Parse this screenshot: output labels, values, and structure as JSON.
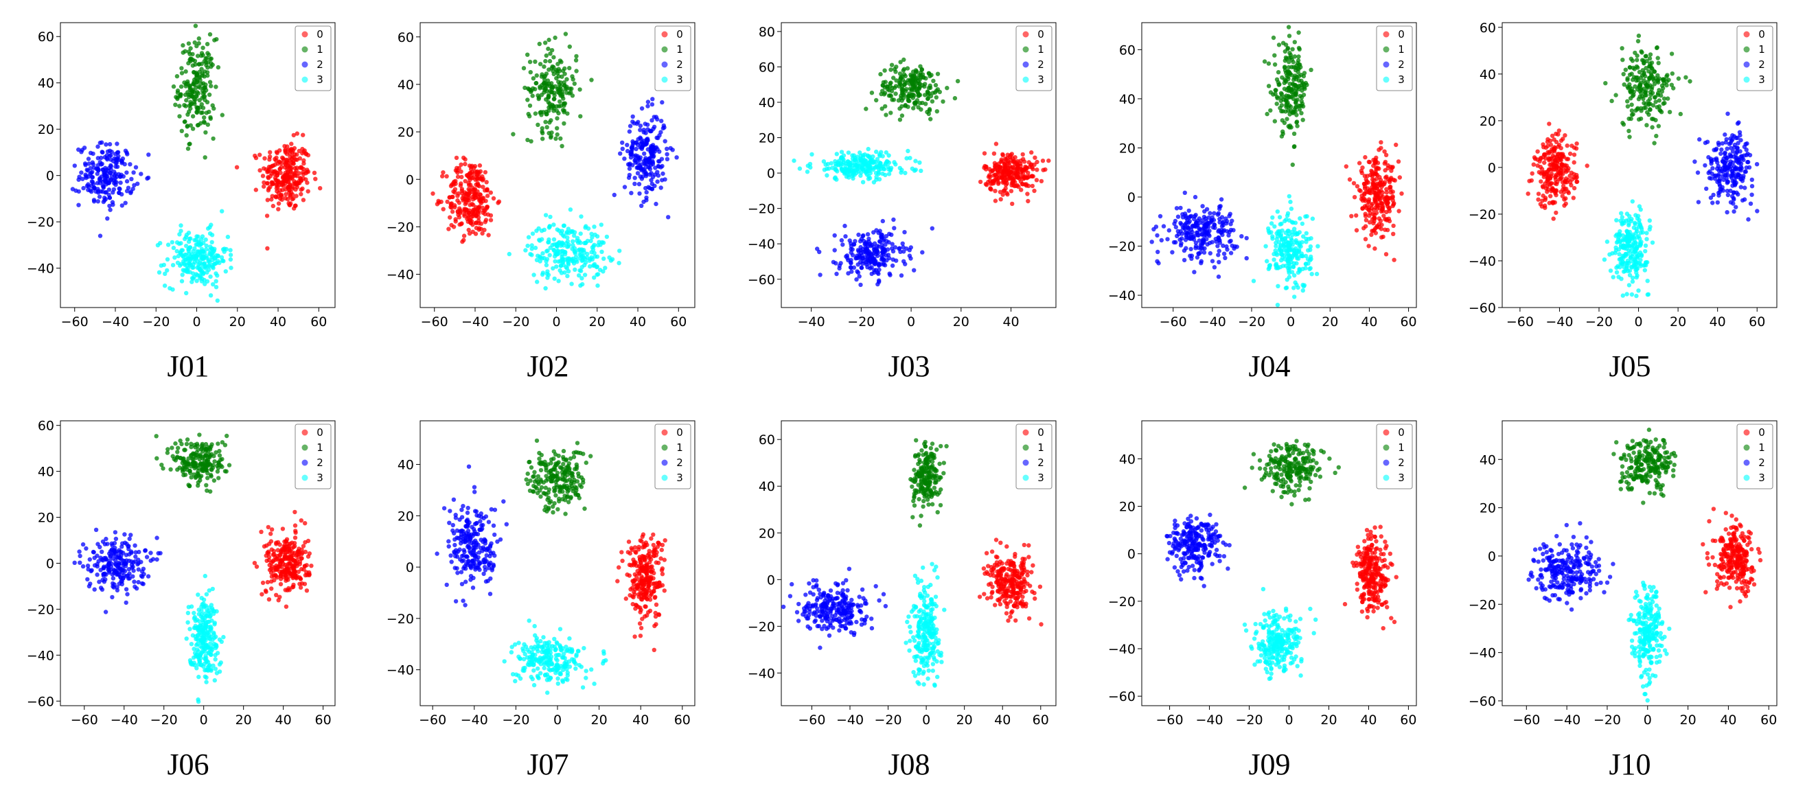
{
  "figure": {
    "legend_labels": [
      "0",
      "1",
      "2",
      "3"
    ],
    "class_colors": [
      "#ff0000",
      "#008000",
      "#0000ff",
      "#00ffff"
    ]
  },
  "chart_data": [
    {
      "type": "scatter",
      "title": "J01",
      "xticks": [
        -60,
        -40,
        -20,
        0,
        20,
        40,
        60
      ],
      "yticks": [
        -40,
        -20,
        0,
        20,
        40,
        60
      ],
      "xlim": [
        -67,
        68
      ],
      "ylim": [
        -57,
        66
      ],
      "clusters": [
        {
          "class": "0",
          "color": "#ff0000",
          "center": [
            44,
            0
          ],
          "spread": [
            8,
            10
          ],
          "n": 260
        },
        {
          "class": "1",
          "color": "#008000",
          "center": [
            0,
            38
          ],
          "spread": [
            6,
            14
          ],
          "n": 200
        },
        {
          "class": "2",
          "color": "#0000ff",
          "center": [
            -44,
            0
          ],
          "spread": [
            9,
            9
          ],
          "n": 210
        },
        {
          "class": "3",
          "color": "#00ffff",
          "center": [
            0,
            -36
          ],
          "spread": [
            10,
            8
          ],
          "n": 230
        }
      ]
    },
    {
      "type": "scatter",
      "title": "J02",
      "xticks": [
        -60,
        -40,
        -20,
        0,
        20,
        40,
        60
      ],
      "yticks": [
        -40,
        -20,
        0,
        20,
        40,
        60
      ],
      "xlim": [
        -67,
        68
      ],
      "ylim": [
        -54,
        66
      ],
      "clusters": [
        {
          "class": "0",
          "color": "#ff0000",
          "center": [
            -42,
            -8
          ],
          "spread": [
            8,
            11
          ],
          "n": 260
        },
        {
          "class": "1",
          "color": "#008000",
          "center": [
            -2,
            38
          ],
          "spread": [
            8,
            12
          ],
          "n": 200
        },
        {
          "class": "2",
          "color": "#0000ff",
          "center": [
            44,
            10
          ],
          "spread": [
            7,
            12
          ],
          "n": 220
        },
        {
          "class": "3",
          "color": "#00ffff",
          "center": [
            6,
            -30
          ],
          "spread": [
            13,
            8
          ],
          "n": 240
        }
      ]
    },
    {
      "type": "scatter",
      "title": "J03",
      "xticks": [
        -40,
        -20,
        0,
        20,
        40
      ],
      "yticks": [
        -60,
        -40,
        -20,
        0,
        20,
        40,
        60,
        80
      ],
      "xlim": [
        -52,
        58
      ],
      "ylim": [
        -76,
        85
      ],
      "clusters": [
        {
          "class": "0",
          "color": "#ff0000",
          "center": [
            40,
            0
          ],
          "spread": [
            7,
            8
          ],
          "n": 250
        },
        {
          "class": "1",
          "color": "#008000",
          "center": [
            0,
            48
          ],
          "spread": [
            9,
            9
          ],
          "n": 210
        },
        {
          "class": "2",
          "color": "#0000ff",
          "center": [
            -16,
            -46
          ],
          "spread": [
            9,
            9
          ],
          "n": 230
        },
        {
          "class": "3",
          "color": "#00ffff",
          "center": [
            -20,
            4
          ],
          "spread": [
            13,
            5
          ],
          "n": 240
        }
      ]
    },
    {
      "type": "scatter",
      "title": "J04",
      "xticks": [
        -60,
        -40,
        -20,
        0,
        20,
        40,
        60
      ],
      "yticks": [
        -40,
        -20,
        0,
        20,
        40,
        60
      ],
      "xlim": [
        -76,
        64
      ],
      "ylim": [
        -45,
        71
      ],
      "clusters": [
        {
          "class": "0",
          "color": "#ff0000",
          "center": [
            44,
            0
          ],
          "spread": [
            7,
            10
          ],
          "n": 260
        },
        {
          "class": "1",
          "color": "#008000",
          "center": [
            0,
            44
          ],
          "spread": [
            6,
            12
          ],
          "n": 200
        },
        {
          "class": "2",
          "color": "#0000ff",
          "center": [
            -46,
            -14
          ],
          "spread": [
            12,
            7
          ],
          "n": 240
        },
        {
          "class": "3",
          "color": "#00ffff",
          "center": [
            0,
            -22
          ],
          "spread": [
            7,
            11
          ],
          "n": 220
        }
      ]
    },
    {
      "type": "scatter",
      "title": "J05",
      "xticks": [
        -60,
        -40,
        -20,
        0,
        20,
        40,
        60
      ],
      "yticks": [
        -60,
        -40,
        -20,
        0,
        20,
        40,
        60
      ],
      "xlim": [
        -69,
        70
      ],
      "ylim": [
        -60,
        62
      ],
      "clusters": [
        {
          "class": "0",
          "color": "#ff0000",
          "center": [
            -42,
            -2
          ],
          "spread": [
            7,
            10
          ],
          "n": 240
        },
        {
          "class": "1",
          "color": "#008000",
          "center": [
            4,
            34
          ],
          "spread": [
            9,
            11
          ],
          "n": 210
        },
        {
          "class": "2",
          "color": "#0000ff",
          "center": [
            46,
            0
          ],
          "spread": [
            8,
            10
          ],
          "n": 220
        },
        {
          "class": "3",
          "color": "#00ffff",
          "center": [
            -4,
            -34
          ],
          "spread": [
            6,
            10
          ],
          "n": 230
        }
      ]
    },
    {
      "type": "scatter",
      "title": "J06",
      "xticks": [
        -60,
        -40,
        -20,
        0,
        20,
        40,
        60
      ],
      "yticks": [
        -60,
        -40,
        -20,
        0,
        20,
        40,
        60
      ],
      "xlim": [
        -72,
        66
      ],
      "ylim": [
        -62,
        62
      ],
      "clusters": [
        {
          "class": "0",
          "color": "#ff0000",
          "center": [
            42,
            0
          ],
          "spread": [
            7,
            9
          ],
          "n": 260
        },
        {
          "class": "1",
          "color": "#008000",
          "center": [
            -2,
            44
          ],
          "spread": [
            9,
            7
          ],
          "n": 200
        },
        {
          "class": "2",
          "color": "#0000ff",
          "center": [
            -44,
            0
          ],
          "spread": [
            10,
            8
          ],
          "n": 220
        },
        {
          "class": "3",
          "color": "#00ffff",
          "center": [
            0,
            -32
          ],
          "spread": [
            5,
            12
          ],
          "n": 230
        }
      ]
    },
    {
      "type": "scatter",
      "title": "J07",
      "xticks": [
        -60,
        -40,
        -20,
        0,
        20,
        40,
        60
      ],
      "yticks": [
        -40,
        -20,
        0,
        20,
        40
      ],
      "xlim": [
        -66,
        66
      ],
      "ylim": [
        -54,
        57
      ],
      "clusters": [
        {
          "class": "0",
          "color": "#ff0000",
          "center": [
            42,
            -4
          ],
          "spread": [
            6,
            11
          ],
          "n": 250
        },
        {
          "class": "1",
          "color": "#008000",
          "center": [
            0,
            34
          ],
          "spread": [
            9,
            8
          ],
          "n": 210
        },
        {
          "class": "2",
          "color": "#0000ff",
          "center": [
            -40,
            8
          ],
          "spread": [
            8,
            11
          ],
          "n": 230
        },
        {
          "class": "3",
          "color": "#00ffff",
          "center": [
            -4,
            -36
          ],
          "spread": [
            11,
            6
          ],
          "n": 230
        }
      ]
    },
    {
      "type": "scatter",
      "title": "J08",
      "xticks": [
        -60,
        -40,
        -20,
        0,
        20,
        40,
        60
      ],
      "yticks": [
        -40,
        -20,
        0,
        20,
        40,
        60
      ],
      "xlim": [
        -76,
        68
      ],
      "ylim": [
        -54,
        68
      ],
      "clusters": [
        {
          "class": "0",
          "color": "#ff0000",
          "center": [
            44,
            -2
          ],
          "spread": [
            8,
            8
          ],
          "n": 250
        },
        {
          "class": "1",
          "color": "#008000",
          "center": [
            0,
            44
          ],
          "spread": [
            5,
            9
          ],
          "n": 190
        },
        {
          "class": "2",
          "color": "#0000ff",
          "center": [
            -48,
            -12
          ],
          "spread": [
            11,
            7
          ],
          "n": 240
        },
        {
          "class": "3",
          "color": "#00ffff",
          "center": [
            0,
            -22
          ],
          "spread": [
            5,
            14
          ],
          "n": 230
        }
      ]
    },
    {
      "type": "scatter",
      "title": "J09",
      "xticks": [
        -60,
        -40,
        -20,
        0,
        20,
        40,
        60
      ],
      "yticks": [
        -60,
        -40,
        -20,
        0,
        20,
        40
      ],
      "xlim": [
        -74,
        64
      ],
      "ylim": [
        -64,
        56
      ],
      "clusters": [
        {
          "class": "0",
          "color": "#ff0000",
          "center": [
            42,
            -8
          ],
          "spread": [
            6,
            11
          ],
          "n": 250
        },
        {
          "class": "1",
          "color": "#008000",
          "center": [
            2,
            36
          ],
          "spread": [
            10,
            7
          ],
          "n": 210
        },
        {
          "class": "2",
          "color": "#0000ff",
          "center": [
            -48,
            4
          ],
          "spread": [
            9,
            8
          ],
          "n": 230
        },
        {
          "class": "3",
          "color": "#00ffff",
          "center": [
            -6,
            -38
          ],
          "spread": [
            8,
            8
          ],
          "n": 240
        }
      ]
    },
    {
      "type": "scatter",
      "title": "J10",
      "xticks": [
        -60,
        -40,
        -20,
        0,
        20,
        40,
        60
      ],
      "yticks": [
        -60,
        -40,
        -20,
        0,
        20,
        40
      ],
      "xlim": [
        -72,
        64
      ],
      "ylim": [
        -62,
        56
      ],
      "clusters": [
        {
          "class": "0",
          "color": "#ff0000",
          "center": [
            44,
            -2
          ],
          "spread": [
            7,
            9
          ],
          "n": 250
        },
        {
          "class": "1",
          "color": "#008000",
          "center": [
            0,
            38
          ],
          "spread": [
            9,
            7
          ],
          "n": 210
        },
        {
          "class": "2",
          "color": "#0000ff",
          "center": [
            -40,
            -6
          ],
          "spread": [
            11,
            8
          ],
          "n": 240
        },
        {
          "class": "3",
          "color": "#00ffff",
          "center": [
            0,
            -32
          ],
          "spread": [
            5,
            12
          ],
          "n": 230
        }
      ]
    }
  ]
}
